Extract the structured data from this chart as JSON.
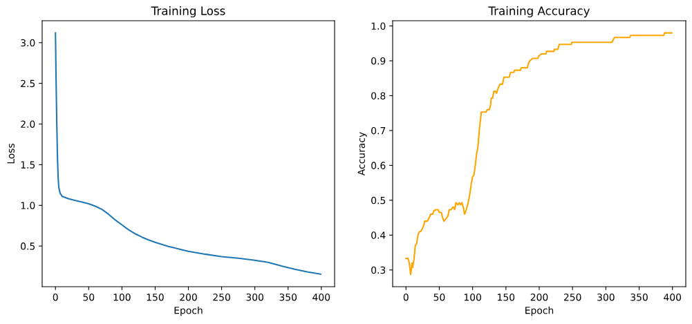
{
  "chart_data": [
    {
      "type": "line",
      "title": "Training Loss",
      "xlabel": "Epoch",
      "ylabel": "Loss",
      "xlim": [
        -20,
        420
      ],
      "xticks": [
        0,
        50,
        100,
        150,
        200,
        250,
        300,
        350,
        400
      ],
      "ylim": [
        0.0,
        3.27
      ],
      "yticks": [
        {
          "value": 0.5,
          "label": "0.5"
        },
        {
          "value": 1.0,
          "label": "1.0"
        },
        {
          "value": 1.5,
          "label": "1.5"
        },
        {
          "value": 2.0,
          "label": "2.0"
        },
        {
          "value": 2.5,
          "label": "2.5"
        },
        {
          "value": 3.0,
          "label": "3.0"
        }
      ],
      "grid": false,
      "legend": false,
      "series": [
        {
          "color": "#1f77b4",
          "x": [
            0,
            1,
            2,
            3,
            4,
            5,
            7,
            10,
            20,
            30,
            40,
            50,
            60,
            70,
            80,
            90,
            100,
            110,
            120,
            130,
            140,
            150,
            160,
            170,
            180,
            190,
            200,
            225,
            250,
            275,
            300,
            320,
            340,
            360,
            380,
            399
          ],
          "values": [
            3.12,
            2.5,
            2.0,
            1.6,
            1.35,
            1.22,
            1.15,
            1.11,
            1.08,
            1.06,
            1.04,
            1.02,
            0.99,
            0.95,
            0.89,
            0.82,
            0.76,
            0.7,
            0.65,
            0.61,
            0.575,
            0.545,
            0.52,
            0.495,
            0.475,
            0.455,
            0.435,
            0.4,
            0.37,
            0.35,
            0.325,
            0.3,
            0.255,
            0.215,
            0.18,
            0.155
          ]
        }
      ]
    },
    {
      "type": "line",
      "title": "Training Accuracy",
      "xlabel": "Epoch",
      "ylabel": "Accuracy",
      "xlim": [
        -20,
        420
      ],
      "xticks": [
        0,
        50,
        100,
        150,
        200,
        250,
        300,
        350,
        400
      ],
      "ylim": [
        0.252,
        1.015
      ],
      "yticks": [
        {
          "value": 0.3,
          "label": "0.3"
        },
        {
          "value": 0.4,
          "label": "0.4"
        },
        {
          "value": 0.5,
          "label": "0.5"
        },
        {
          "value": 0.6,
          "label": "0.6"
        },
        {
          "value": 0.7,
          "label": "0.7"
        },
        {
          "value": 0.8,
          "label": "0.8"
        },
        {
          "value": 0.9,
          "label": "0.9"
        },
        {
          "value": 1.0,
          "label": "1.0"
        }
      ],
      "grid": false,
      "legend": false,
      "series": [
        {
          "color": "#ffa500",
          "x": [
            0,
            3,
            5,
            7,
            8,
            9,
            10,
            12,
            14,
            16,
            18,
            20,
            22,
            25,
            27,
            28,
            32,
            35,
            37,
            40,
            42,
            45,
            48,
            50,
            53,
            55,
            57,
            60,
            63,
            65,
            68,
            70,
            72,
            73,
            75,
            78,
            80,
            82,
            84,
            86,
            88,
            90,
            93,
            96,
            98,
            100,
            102,
            104,
            106,
            108,
            110,
            112,
            113,
            120,
            122,
            125,
            127,
            128,
            130,
            132,
            134,
            136,
            138,
            141,
            145,
            147,
            155,
            157,
            162,
            163,
            172,
            173,
            182,
            184,
            186,
            190,
            198,
            199,
            203,
            210,
            211,
            222,
            223,
            228,
            230,
            248,
            249,
            309,
            311,
            313,
            336,
            337,
            387,
            388,
            399
          ],
          "values": [
            0.333,
            0.333,
            0.32,
            0.287,
            0.3,
            0.32,
            0.307,
            0.33,
            0.37,
            0.375,
            0.4,
            0.41,
            0.41,
            0.42,
            0.43,
            0.44,
            0.44,
            0.45,
            0.46,
            0.46,
            0.47,
            0.473,
            0.473,
            0.465,
            0.465,
            0.45,
            0.44,
            0.447,
            0.455,
            0.473,
            0.473,
            0.48,
            0.48,
            0.473,
            0.493,
            0.487,
            0.493,
            0.487,
            0.493,
            0.48,
            0.46,
            0.47,
            0.49,
            0.52,
            0.547,
            0.567,
            0.573,
            0.6,
            0.633,
            0.653,
            0.7,
            0.733,
            0.753,
            0.753,
            0.76,
            0.76,
            0.773,
            0.793,
            0.793,
            0.813,
            0.813,
            0.807,
            0.82,
            0.833,
            0.833,
            0.853,
            0.853,
            0.867,
            0.867,
            0.873,
            0.873,
            0.88,
            0.88,
            0.893,
            0.9,
            0.907,
            0.907,
            0.913,
            0.92,
            0.92,
            0.927,
            0.927,
            0.933,
            0.933,
            0.947,
            0.947,
            0.953,
            0.953,
            0.96,
            0.967,
            0.967,
            0.973,
            0.973,
            0.98,
            0.98
          ]
        }
      ]
    }
  ]
}
